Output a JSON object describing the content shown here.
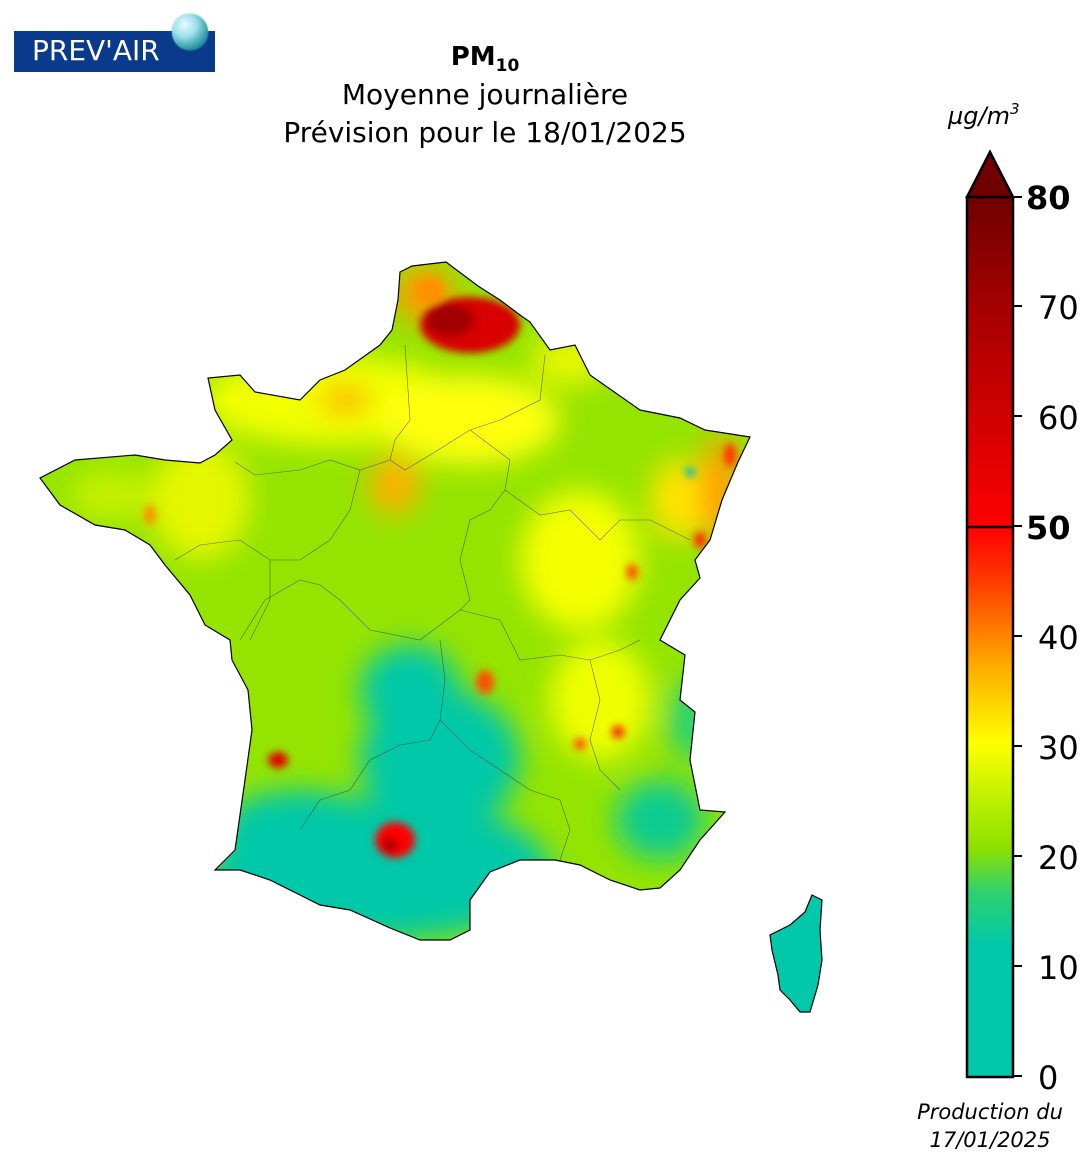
{
  "logo": {
    "text": "PREV'AIR"
  },
  "title": {
    "pollutant": "PM",
    "pollutant_sub": "10",
    "line2": "Moyenne journalière",
    "line3": "Prévision pour le 18/01/2025"
  },
  "colorbar": {
    "unit": "µg/m",
    "unit_sup": "3",
    "ticks": [
      "0",
      "10",
      "20",
      "30",
      "40",
      "50",
      "60",
      "70",
      "80"
    ],
    "bold_ticks": [
      "50",
      "80"
    ],
    "range": [
      0,
      80
    ],
    "threshold": 50,
    "colors": {
      "low": "#00c8a8",
      "mid_green": "#8ee000",
      "yellow": "#ffff00",
      "orange": "#ffa000",
      "red": "#ff0000",
      "dark_red": "#7a0000"
    }
  },
  "production": {
    "line1": "Production du",
    "line2": "17/01/2025"
  },
  "map": {
    "region": "France",
    "hotspots": [
      {
        "name": "Hauts-de-France",
        "level": 65
      },
      {
        "name": "Alsace",
        "level": 45
      },
      {
        "name": "Toulouse",
        "level": 55
      },
      {
        "name": "Bordeaux",
        "level": 55
      }
    ]
  }
}
